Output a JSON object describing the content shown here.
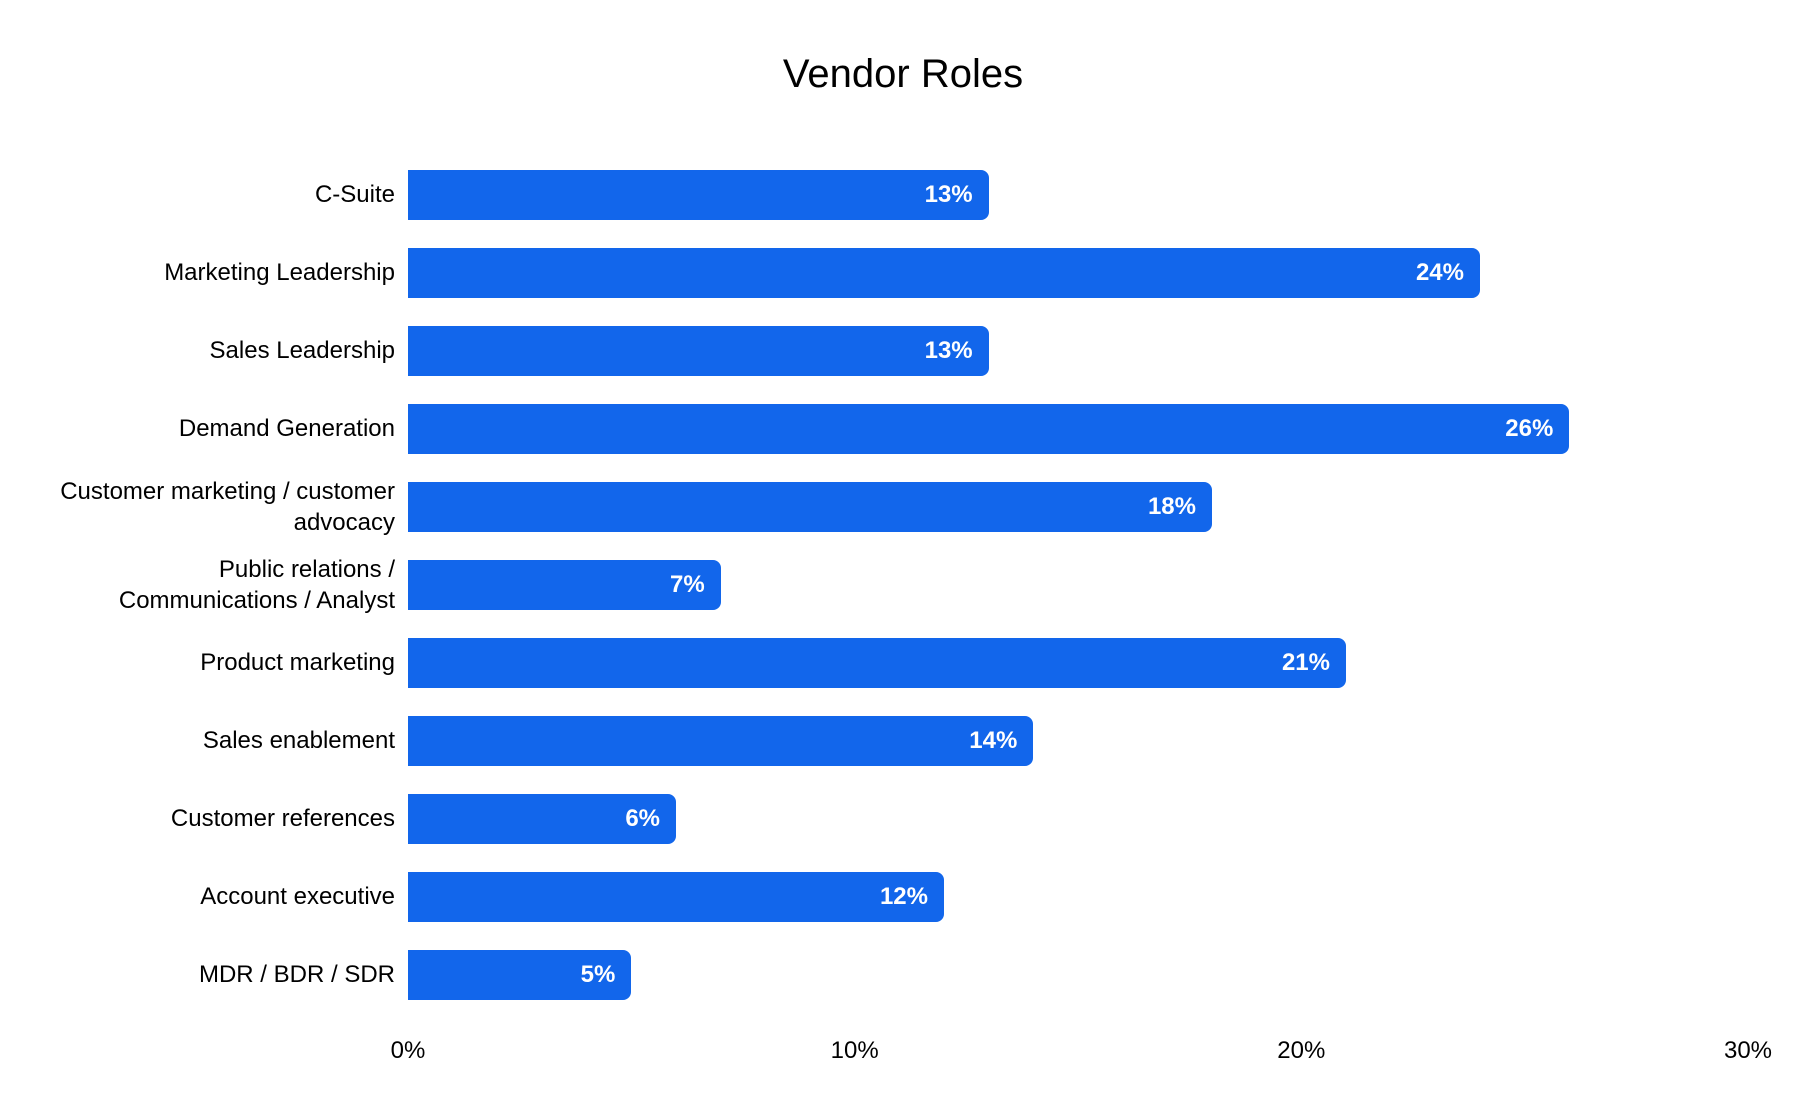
{
  "chart_data": {
    "type": "bar",
    "orientation": "horizontal",
    "title": "Vendor Roles",
    "categories": [
      "C-Suite",
      "Marketing Leadership",
      "Sales Leadership",
      "Demand Generation",
      "Customer marketing / customer advocacy",
      "Public relations / Communications / Analyst",
      "Product marketing",
      "Sales enablement",
      "Customer references",
      "Account executive",
      "MDR / BDR / SDR"
    ],
    "values": [
      13,
      24,
      13,
      26,
      18,
      7,
      21,
      14,
      6,
      12,
      5
    ],
    "value_labels": [
      "13%",
      "24%",
      "13%",
      "26%",
      "18%",
      "7%",
      "21%",
      "14%",
      "6%",
      "12%",
      "5%"
    ],
    "xlabel": "",
    "ylabel": "",
    "xlim": [
      0,
      30
    ],
    "x_ticks": [
      "0%",
      "10%",
      "20%",
      "30%"
    ],
    "grid": false,
    "legend": false,
    "bar_color": "#1266eb",
    "value_label_color": "#ffffff",
    "title_color": "#000000",
    "axis_label_color": "#000000"
  }
}
